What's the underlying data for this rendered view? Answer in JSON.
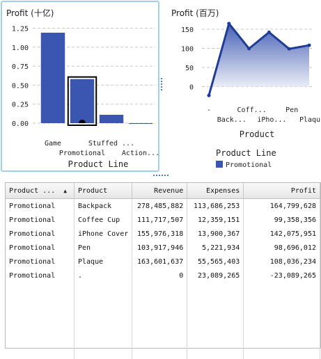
{
  "chart_data": [
    {
      "type": "bar",
      "title": "Profit (十亿)",
      "xlabel": "Product Line",
      "ylabel": "",
      "ylim": [
        0,
        1.3
      ],
      "yticks": [
        "1.25",
        "1.00",
        "0.75",
        "0.50",
        "0.25",
        "0.00"
      ],
      "categories": [
        "Game",
        "Promotional",
        "Stuffed ...",
        "Action..."
      ],
      "values": [
        1.19,
        0.58,
        0.11,
        -0.01
      ],
      "selected_category": "Promotional",
      "colors": {
        "bar": "#3a56b0",
        "grid": "#c8c8c8"
      },
      "grid": true
    },
    {
      "type": "area",
      "title": "Profit (百万)",
      "xlabel": "Product",
      "ylabel": "",
      "ylim": [
        -30,
        170
      ],
      "yticks": [
        "150",
        "100",
        "50",
        "0"
      ],
      "categories": [
        ".",
        "Back...",
        "Coff...",
        "iPho...",
        "Pen",
        "Plaque"
      ],
      "values": [
        -23.09,
        164.8,
        99.36,
        142.08,
        98.7,
        108.04
      ],
      "legend": {
        "title": "Product Line",
        "items": [
          "Promotional"
        ],
        "placement": "bottom"
      },
      "colors": {
        "line": "#1f3c96",
        "fill_top": "#3a56b0",
        "fill_bottom": "#ffffff",
        "grid": "#c8c8c8"
      },
      "grid": true
    }
  ],
  "table": {
    "headers": [
      "Product ...",
      "Product",
      "Revenue",
      "Expenses",
      "Profit"
    ],
    "sort_icon": "sort-ascending-icon",
    "rows": [
      [
        "Promotional",
        "Backpack",
        "278,485,882",
        "113,686,253",
        "164,799,628"
      ],
      [
        "Promotional",
        "Coffee Cup",
        "111,717,507",
        "12,359,151",
        "99,358,356"
      ],
      [
        "Promotional",
        "iPhone Cover",
        "155,976,318",
        "13,900,367",
        "142,075,951"
      ],
      [
        "Promotional",
        "Pen",
        "103,917,946",
        "5,221,934",
        "98,696,012"
      ],
      [
        "Promotional",
        "Plaque",
        "163,601,637",
        "55,565,403",
        "108,036,234"
      ],
      [
        "Promotional",
        ".",
        "0",
        "23,089,265",
        "-23,089,265"
      ]
    ]
  }
}
